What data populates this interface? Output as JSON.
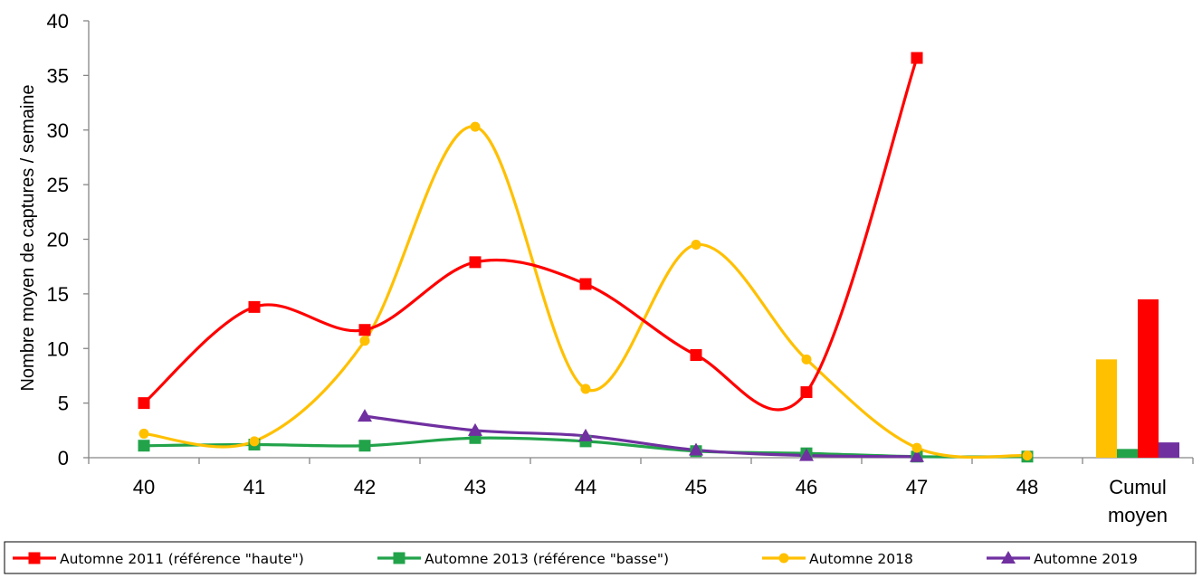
{
  "chart_data": {
    "type": "line",
    "title": "",
    "xlabel": "",
    "ylabel": "Nombre moyen de captures / semaine",
    "ylim": [
      0,
      40
    ],
    "yticks": [
      0,
      5,
      10,
      15,
      20,
      25,
      30,
      35,
      40
    ],
    "categories": [
      "40",
      "41",
      "42",
      "43",
      "44",
      "45",
      "46",
      "47",
      "48"
    ],
    "cumul_label": [
      "Cumul",
      "moyen"
    ],
    "grid": false,
    "legend_position": "bottom",
    "series": [
      {
        "name": "Automne 2011 (référence \"haute\")",
        "color": "#FF0000",
        "marker": "square",
        "x": [
          "40",
          "41",
          "42",
          "43",
          "44",
          "45",
          "46",
          "47"
        ],
        "values": [
          5.0,
          13.8,
          11.7,
          17.9,
          15.9,
          9.4,
          6.0,
          36.6
        ],
        "cumul": 14.5
      },
      {
        "name": "Automne 2013 (référence \"basse\")",
        "color": "#22A34A",
        "marker": "square",
        "x": [
          "40",
          "41",
          "42",
          "43",
          "44",
          "45",
          "46",
          "47",
          "48"
        ],
        "values": [
          1.1,
          1.2,
          1.1,
          1.8,
          1.5,
          0.6,
          0.4,
          0.1,
          0.1
        ],
        "cumul": 0.8
      },
      {
        "name": "Automne 2018",
        "color": "#FFC000",
        "marker": "circle",
        "x": [
          "40",
          "41",
          "42",
          "43",
          "44",
          "45",
          "46",
          "47",
          "48"
        ],
        "values": [
          2.2,
          1.5,
          10.7,
          30.3,
          6.3,
          19.5,
          9.0,
          0.9,
          0.2
        ],
        "cumul": 9.0
      },
      {
        "name": "Automne 2019",
        "color": "#7030A0",
        "marker": "triangle",
        "x": [
          "42",
          "43",
          "44",
          "45",
          "46",
          "47"
        ],
        "values": [
          3.8,
          2.5,
          2.0,
          0.7,
          0.2,
          0.1
        ],
        "cumul": 1.4
      }
    ]
  }
}
